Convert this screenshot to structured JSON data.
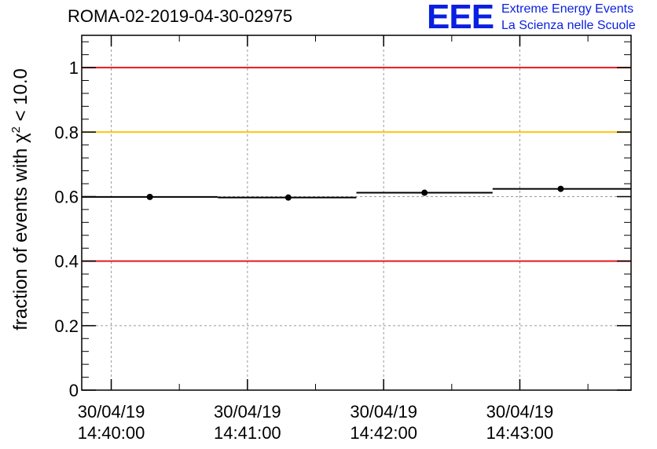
{
  "header": {
    "title": "ROMA-02-2019-04-30-02975"
  },
  "logo": {
    "mark": "EEE",
    "line1": "Extreme Energy Events",
    "line2": "La Scienza nelle Scuole",
    "color": "#0a1fe0"
  },
  "chart_data": {
    "type": "scatter",
    "title": "ROMA-02-2019-04-30-02975",
    "ylabel_prefix": "fraction of events with χ",
    "ylabel_sup": "2",
    "ylabel_suffix": " < 10.0",
    "ylim": [
      0,
      1.1
    ],
    "yticks": [
      0,
      0.2,
      0.4,
      0.6,
      0.8,
      1
    ],
    "ytick_labels": [
      "0",
      "0.2",
      "0.4",
      "0.6",
      "0.8",
      "1"
    ],
    "xlim": [
      "2019-04-30 14:39:47",
      "2019-04-30 14:43:49"
    ],
    "xticks": [
      {
        "line1": "30/04/19",
        "line2": "14:40:00",
        "t": "2019-04-30 14:40:00"
      },
      {
        "line1": "30/04/19",
        "line2": "14:41:00",
        "t": "2019-04-30 14:41:00"
      },
      {
        "line1": "30/04/19",
        "line2": "14:42:00",
        "t": "2019-04-30 14:42:00"
      },
      {
        "line1": "30/04/19",
        "line2": "14:43:00",
        "t": "2019-04-30 14:43:00"
      }
    ],
    "grid": true,
    "series": [
      {
        "points": [
          {
            "x": "2019-04-30 14:40:17",
            "x_start": "2019-04-30 14:39:47",
            "x_end": "2019-04-30 14:40:47",
            "y": 0.599,
            "yerr": 0.008
          },
          {
            "x": "2019-04-30 14:41:18",
            "x_start": "2019-04-30 14:40:47",
            "x_end": "2019-04-30 14:41:48",
            "y": 0.597,
            "yerr": 0.008
          },
          {
            "x": "2019-04-30 14:42:18",
            "x_start": "2019-04-30 14:41:48",
            "x_end": "2019-04-30 14:42:48",
            "y": 0.612,
            "yerr": 0.008
          },
          {
            "x": "2019-04-30 14:43:18",
            "x_start": "2019-04-30 14:42:48",
            "x_end": "2019-04-30 14:43:49",
            "y": 0.624,
            "yerr": 0.008
          }
        ]
      }
    ],
    "reference_lines": [
      {
        "y": 1.0,
        "color": "#e31a1c"
      },
      {
        "y": 0.8,
        "color": "#ffc20e"
      },
      {
        "y": 0.4,
        "color": "#e31a1c"
      }
    ]
  }
}
